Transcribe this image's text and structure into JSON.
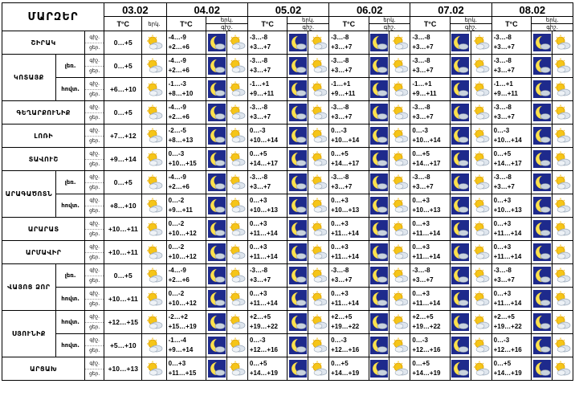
{
  "header": {
    "region_label": "ՄԱՐԶԵՐ",
    "temp_label": "T°C",
    "sky_label_1": "երկ.",
    "night_abbr": "գիշ.",
    "day_abbr": "ցեր.",
    "dates": [
      "03.02",
      "04.02",
      "05.02",
      "06.02",
      "07.02",
      "08.02"
    ]
  },
  "rows": [
    {
      "region": "ՇԻՐԱԿ",
      "sub": "",
      "d0": "0…+5",
      "t": [
        [
          "-4…-9",
          "+2…+6"
        ],
        [
          "-3…-8",
          "+3…+7"
        ],
        [
          "-3…-8",
          "+3…+7"
        ],
        [
          "-3…-8",
          "+3…+7"
        ],
        [
          "-3…-8",
          "+3…+7"
        ]
      ]
    },
    {
      "region": "ԿՈՏԱՅՔ",
      "sub": "լեռ.",
      "d0": "0…+5",
      "t": [
        [
          "-4…-9",
          "+2…+6"
        ],
        [
          "-3…-8",
          "+3…+7"
        ],
        [
          "-3…-8",
          "+3…+7"
        ],
        [
          "-3…-8",
          "+3…+7"
        ],
        [
          "-3…-8",
          "+3…+7"
        ]
      ]
    },
    {
      "region": "",
      "sub": "հովտ.",
      "d0": "+6…+10",
      "t": [
        [
          "-1…-3",
          "+8…+10"
        ],
        [
          "-1…+1",
          "+9…+11"
        ],
        [
          "-1…+1",
          "+9…+11"
        ],
        [
          "-1…+1",
          "+9…+11"
        ],
        [
          "-1…+1",
          "+9…+11"
        ]
      ]
    },
    {
      "region": "ԳԵՂԱՐՔՈՒՆԻՔ",
      "sub": "",
      "d0": "0…+5",
      "t": [
        [
          "-4…-9",
          "+2…+6"
        ],
        [
          "-3…-8",
          "+3…+7"
        ],
        [
          "-3…-8",
          "+3…+7"
        ],
        [
          "-3…-8",
          "+3…+7"
        ],
        [
          "-3…-8",
          "+3…+7"
        ]
      ]
    },
    {
      "region": "ԼՈՌԻ",
      "sub": "",
      "d0": "+7…+12",
      "t": [
        [
          "-2…-5",
          "+8…+13"
        ],
        [
          "0…-3",
          "+10…+14"
        ],
        [
          "0…-3",
          "+10…+14"
        ],
        [
          "0…-3",
          "+10…+14"
        ],
        [
          "0…-3",
          "+10…+14"
        ]
      ]
    },
    {
      "region": "ՏԱՎՈՒՇ",
      "sub": "",
      "d0": "+9…+14",
      "t": [
        [
          "0…-3",
          "+10…+15"
        ],
        [
          "0…+5",
          "+14…+17"
        ],
        [
          "0…+5",
          "+14…+17"
        ],
        [
          "0…+5",
          "+14…+17"
        ],
        [
          "0…+5",
          "+14…+17"
        ]
      ]
    },
    {
      "region": "ԱՐԱԳԱԾՈՏՆ",
      "sub": "լեռ.",
      "d0": "0…+5",
      "t": [
        [
          "-4…-9",
          "+2…+6"
        ],
        [
          "-3…-8",
          "+3…+7"
        ],
        [
          "-3…-8",
          "+3…+7"
        ],
        [
          "-3…-8",
          "+3…+7"
        ],
        [
          "-3…-8",
          "+3…+7"
        ]
      ]
    },
    {
      "region": "",
      "sub": "հովտ.",
      "d0": "+8…+10",
      "t": [
        [
          "0…-2",
          "+9…+11"
        ],
        [
          "0…+3",
          "+10…+13"
        ],
        [
          "0…+3",
          "+10…+13"
        ],
        [
          "0…+3",
          "+10…+13"
        ],
        [
          "0…+3",
          "+10…+13"
        ]
      ]
    },
    {
      "region": "ԱՐԱՐԱՏ",
      "sub": "",
      "d0": "+10…+11",
      "t": [
        [
          "0…-2",
          "+10…+12"
        ],
        [
          "0…+3",
          "+11…+14"
        ],
        [
          "0…+3",
          "+11…+14"
        ],
        [
          "0…+3",
          "+11…+14"
        ],
        [
          "0…+3",
          "+11…+14"
        ]
      ]
    },
    {
      "region": "ԱՐՄԱՎԻՐ",
      "sub": "",
      "d0": "+10…+11",
      "t": [
        [
          "0…-2",
          "+10…+12"
        ],
        [
          "0…+3",
          "+11…+14"
        ],
        [
          "0…+3",
          "+11…+14"
        ],
        [
          "0…+3",
          "+11…+14"
        ],
        [
          "0…+3",
          "+11…+14"
        ]
      ]
    },
    {
      "region": "ՎԱՅՈՑ ՁՈՐ",
      "sub": "լեռ.",
      "d0": "0…+5",
      "t": [
        [
          "-4…-9",
          "+2…+6"
        ],
        [
          "-3…-8",
          "+3…+7"
        ],
        [
          "-3…-8",
          "+3…+7"
        ],
        [
          "-3…-8",
          "+3…+7"
        ],
        [
          "-3…-8",
          "+3…+7"
        ]
      ]
    },
    {
      "region": "",
      "sub": "հովտ.",
      "d0": "+10…+11",
      "t": [
        [
          "0…-2",
          "+10…+12"
        ],
        [
          "0…+3",
          "+11…+14"
        ],
        [
          "0…+3",
          "+11…+14"
        ],
        [
          "0…+3",
          "+11…+14"
        ],
        [
          "0…+3",
          "+11…+14"
        ]
      ]
    },
    {
      "region": "ՍՅՈՒՆԻՔ",
      "sub": "հովտ.",
      "d0": "+12…+15",
      "t": [
        [
          "-2…+2",
          "+15…+19"
        ],
        [
          "+2…+5",
          "+19…+22"
        ],
        [
          "+2…+5",
          "+19…+22"
        ],
        [
          "+2…+5",
          "+19…+22"
        ],
        [
          "+2…+5",
          "+19…+22"
        ]
      ]
    },
    {
      "region": "",
      "sub": "հովտ.",
      "d0": "+5…+10",
      "t": [
        [
          "-1…-4",
          "+9…+14"
        ],
        [
          "0…-3",
          "+12…+16"
        ],
        [
          "0…-3",
          "+12…+16"
        ],
        [
          "0…-3",
          "+12…+16"
        ],
        [
          "0…-3",
          "+12…+16"
        ]
      ]
    },
    {
      "region": "ԱՐՑԱԽ",
      "sub": "",
      "d0": "+10…+13",
      "t": [
        [
          "0…+3",
          "+11…+15"
        ],
        [
          "0…+5",
          "+14…+19"
        ],
        [
          "0…+5",
          "+14…+19"
        ],
        [
          "0…+5",
          "+14…+19"
        ],
        [
          "0…+5",
          "+14…+19"
        ]
      ]
    }
  ],
  "icons": {
    "day": "sun-cloud-icon",
    "night": "moon-cloud-icon",
    "night_bg": "#1e2a8c",
    "sun_color": "#f5c518",
    "moon_color": "#ffe14d"
  }
}
